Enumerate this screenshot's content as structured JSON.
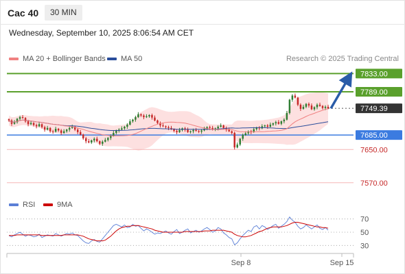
{
  "header": {
    "symbol": "Cac 40",
    "interval": "30 MIN"
  },
  "datetime": "Wednesday, September 10, 2025 8:06:54 AM CET",
  "legend": {
    "ma20": "MA 20 + Bollinger Bands",
    "ma50": "MA 50",
    "ma20_color": "#f08080",
    "ma50_color": "#2a4d9b"
  },
  "source": "Research © 2025 Trading Central",
  "rsi_legend": {
    "rsi": "RSI",
    "ma9": "9MA",
    "rsi_color": "#5b7fd6",
    "ma9_color": "#cc0000"
  },
  "colors": {
    "up": "#2e7d32",
    "down": "#c62828",
    "resistance": "#5aa02c",
    "support": "#3b7be0",
    "target": "#f5b5b5",
    "arrow": "#2a5ca8",
    "last": "#333333"
  },
  "chart_data": [
    {
      "type": "candlestick",
      "ylim": [
        7535,
        7865
      ],
      "x_ticks": [
        "Sep 8",
        "Sep 15"
      ],
      "last_price": 7749.39,
      "levels": [
        {
          "value": 7833.0,
          "label": "7833.00",
          "kind": "resistance"
        },
        {
          "value": 7789.0,
          "label": "7789.00",
          "kind": "resistance"
        },
        {
          "value": 7749.39,
          "label": "7749.39",
          "kind": "last"
        },
        {
          "value": 7685.0,
          "label": "7685.00",
          "kind": "support"
        },
        {
          "value": 7650.0,
          "label": "7650.00",
          "kind": "target"
        },
        {
          "value": 7570.0,
          "label": "7570.00",
          "kind": "target"
        }
      ],
      "forecast_arrow": {
        "from": 7749,
        "to": 7833
      },
      "close": [
        7720,
        7712,
        7716,
        7724,
        7728,
        7726,
        7718,
        7711,
        7714,
        7709,
        7706,
        7711,
        7704,
        7698,
        7702,
        7694,
        7693,
        7700,
        7696,
        7690,
        7694,
        7698,
        7702,
        7705,
        7698,
        7692,
        7686,
        7677,
        7670,
        7667,
        7672,
        7676,
        7670,
        7664,
        7669,
        7673,
        7678,
        7683,
        7690,
        7696,
        7698,
        7701,
        7705,
        7710,
        7718,
        7722,
        7728,
        7735,
        7732,
        7728,
        7730,
        7733,
        7727,
        7720,
        7714,
        7708,
        7706,
        7704,
        7702,
        7699,
        7695,
        7692,
        7697,
        7701,
        7698,
        7692,
        7694,
        7697,
        7695,
        7693,
        7696,
        7700,
        7704,
        7702,
        7698,
        7701,
        7705,
        7708,
        7702,
        7698,
        7694,
        7690,
        7655,
        7662,
        7676,
        7685,
        7689,
        7694,
        7692,
        7699,
        7703,
        7701,
        7706,
        7708,
        7705,
        7710,
        7713,
        7716,
        7712,
        7718,
        7722,
        7738,
        7770,
        7780,
        7775,
        7758,
        7748,
        7753,
        7760,
        7756,
        7747,
        7752,
        7758,
        7755,
        7750,
        7753,
        7749
      ],
      "rsi": {
        "ylim": [
          20,
          80
        ],
        "ticks": [
          70,
          50,
          30
        ],
        "rsi": [
          45,
          43,
          46,
          48,
          50,
          47,
          44,
          46,
          45,
          43,
          44,
          47,
          42,
          44,
          46,
          45,
          44,
          48,
          46,
          44,
          46,
          48,
          47,
          49,
          46,
          45,
          41,
          37,
          34,
          33,
          37,
          39,
          36,
          35,
          40,
          45,
          50,
          55,
          60,
          62,
          60,
          58,
          61,
          57,
          58,
          62,
          59,
          60,
          56,
          52,
          55,
          53,
          50,
          47,
          49,
          48,
          50,
          52,
          49,
          47,
          51,
          54,
          48,
          50,
          53,
          55,
          49,
          51,
          53,
          50,
          52,
          55,
          57,
          54,
          50,
          52,
          57,
          55,
          49,
          46,
          42,
          40,
          31,
          34,
          40,
          45,
          49,
          53,
          51,
          58,
          60,
          55,
          60,
          58,
          54,
          57,
          60,
          62,
          56,
          59,
          62,
          66,
          73,
          68,
          65,
          59,
          55,
          57,
          61,
          58,
          55,
          58,
          61,
          56,
          54,
          57,
          53
        ],
        "ma9": [
          45,
          45,
          45,
          46,
          46,
          46,
          46,
          46,
          46,
          46,
          46,
          46,
          45,
          45,
          45,
          45,
          45,
          45,
          45,
          45,
          46,
          46,
          46,
          46,
          46,
          46,
          45,
          44,
          42,
          40,
          39,
          38,
          37,
          37,
          37,
          38,
          41,
          44,
          48,
          52,
          55,
          57,
          58,
          59,
          59,
          60,
          60,
          60,
          59,
          58,
          57,
          56,
          55,
          53,
          52,
          51,
          50,
          50,
          50,
          50,
          50,
          50,
          50,
          50,
          51,
          51,
          51,
          51,
          51,
          51,
          51,
          52,
          52,
          52,
          53,
          53,
          53,
          53,
          53,
          52,
          51,
          50,
          47,
          45,
          44,
          43,
          43,
          44,
          45,
          47,
          49,
          51,
          52,
          54,
          56,
          57,
          58,
          58,
          58,
          58,
          59,
          60,
          62,
          64,
          65,
          65,
          64,
          63,
          62,
          61,
          60,
          59,
          58,
          58,
          57,
          57,
          56
        ]
      }
    }
  ]
}
